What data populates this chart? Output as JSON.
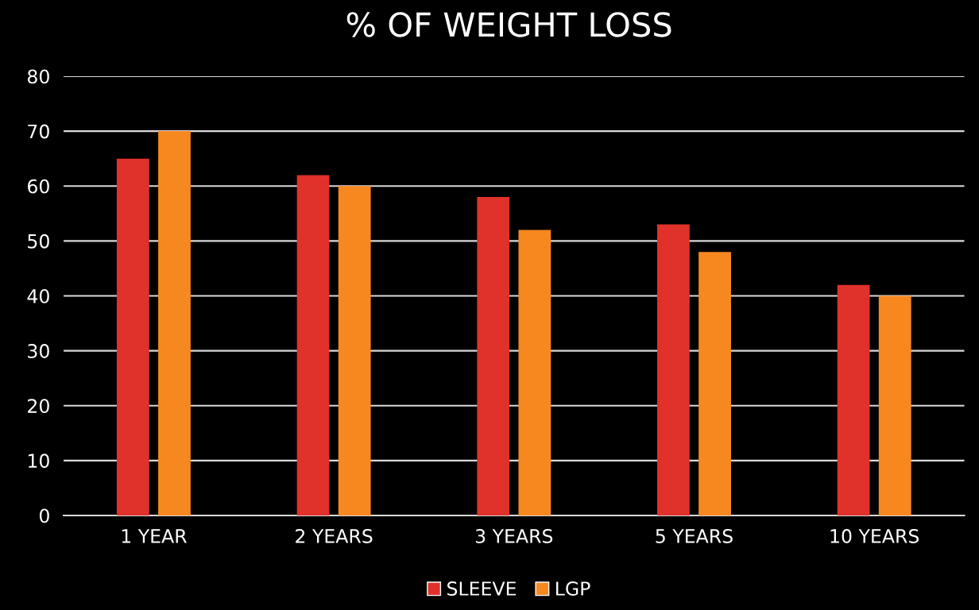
{
  "chart_data": {
    "type": "bar",
    "title": "% OF WEIGHT LOSS",
    "categories": [
      "1 YEAR",
      "2 YEARS",
      "3 YEARS",
      "5 YEARS",
      "10 YEARS"
    ],
    "series": [
      {
        "name": "SLEEVE",
        "color": "#e0312b",
        "values": [
          65,
          62,
          58,
          53,
          42
        ]
      },
      {
        "name": "LGP",
        "color": "#f7881f",
        "values": [
          70,
          60,
          52,
          48,
          40
        ]
      }
    ],
    "ylim": [
      0,
      80
    ],
    "yticks": [
      0,
      10,
      20,
      30,
      40,
      50,
      60,
      70,
      80
    ],
    "grid": "y",
    "legend": "bottom"
  }
}
